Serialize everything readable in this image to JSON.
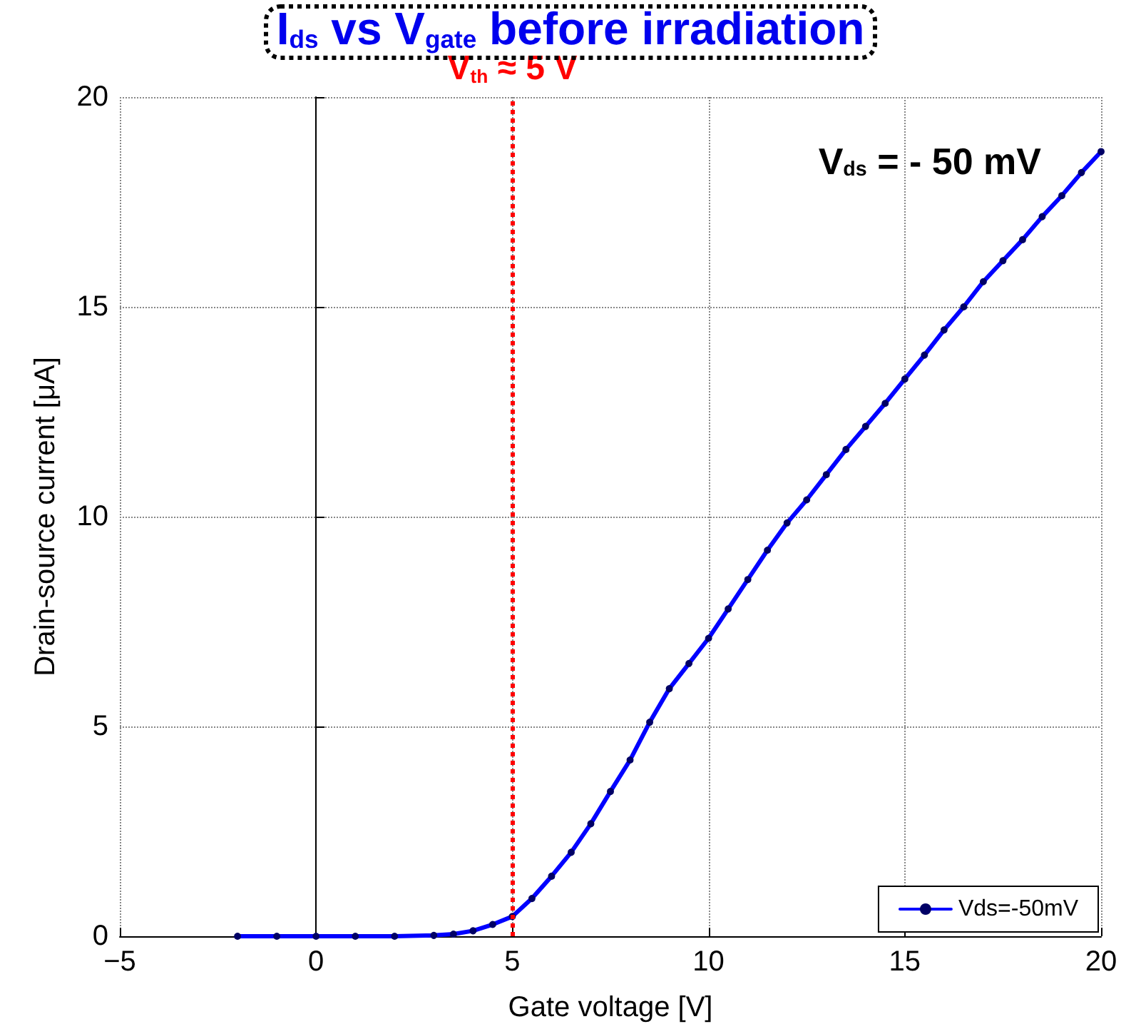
{
  "chart_data": {
    "type": "line",
    "title": "I$_{ds}$ vs V$_{gate}$ before irradiation",
    "xlabel": "Gate voltage [V]",
    "ylabel": "Drain-source current [μA]",
    "annotations": [
      "V$_{ds}$ = - 50 mV"
    ],
    "x": [
      -2,
      -1,
      0,
      1,
      2,
      3,
      3.5,
      4,
      4.5,
      5,
      5.5,
      6,
      6.5,
      7,
      7.5,
      8,
      8.5,
      9,
      9.5,
      10,
      10.5,
      11,
      11.5,
      12,
      12.5,
      13,
      13.5,
      14,
      14.5,
      15,
      15.5,
      16,
      16.5,
      17,
      17.5,
      18,
      18.5,
      19,
      19.5,
      20
    ],
    "series": [
      {
        "name": "Vds=-50mV",
        "color": "#0000ff",
        "values": [
          0,
          0,
          0,
          0,
          0,
          0.02,
          0.05,
          0.13,
          0.28,
          0.47,
          0.9,
          1.43,
          2.0,
          2.68,
          3.45,
          4.2,
          5.1,
          5.9,
          6.5,
          7.1,
          7.8,
          8.5,
          9.2,
          9.85,
          10.4,
          11.0,
          11.6,
          12.15,
          12.7,
          13.28,
          13.85,
          14.45,
          15.0,
          15.6,
          16.1,
          16.6,
          17.15,
          17.65,
          18.2,
          18.7
        ]
      }
    ],
    "xlim": [
      -5,
      20
    ],
    "xticks": [
      -5,
      0,
      5,
      10,
      15,
      20
    ],
    "ylim": [
      0,
      20
    ],
    "yticks": [
      0,
      5,
      10,
      15,
      20
    ],
    "ref_lines": [
      {
        "axis": "x",
        "value": 5,
        "label": "V$_{th}$ ≈ 5 V",
        "color": "#ff0000",
        "line_style": "dotted"
      }
    ],
    "grid": true,
    "legend": "bottom right",
    "marker": "circle",
    "line_style": "solid"
  }
}
